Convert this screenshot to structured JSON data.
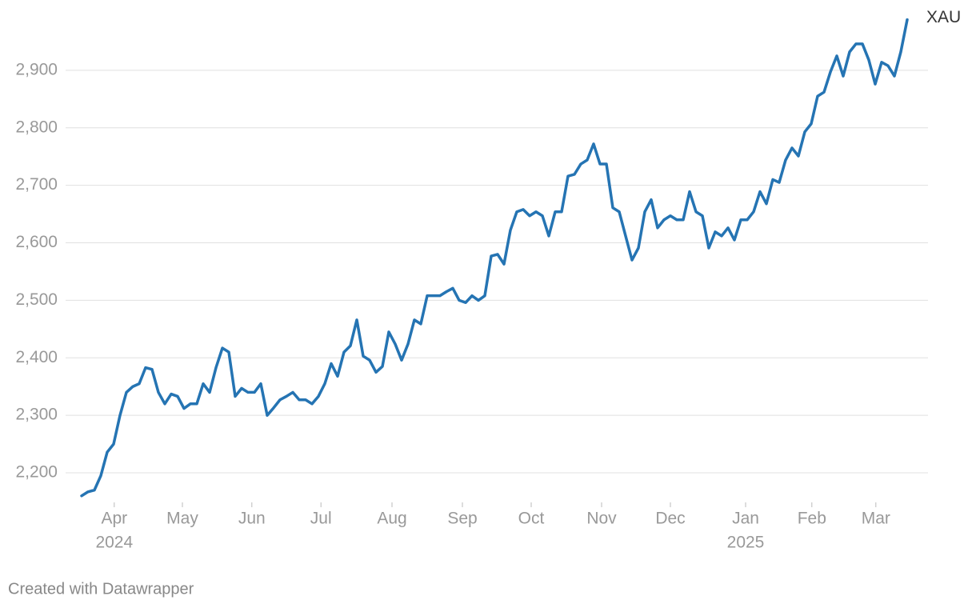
{
  "chart_data": {
    "type": "line",
    "footer": "Created with Datawrapper",
    "series": [
      {
        "name": "XAU",
        "color": "#2574b3",
        "values": [
          2160,
          2167,
          2170,
          2195,
          2236,
          2250,
          2300,
          2340,
          2350,
          2355,
          2383,
          2380,
          2340,
          2320,
          2337,
          2333,
          2312,
          2320,
          2320,
          2355,
          2340,
          2383,
          2417,
          2410,
          2333,
          2347,
          2340,
          2340,
          2355,
          2300,
          2313,
          2327,
          2333,
          2340,
          2327,
          2327,
          2320,
          2333,
          2355,
          2390,
          2368,
          2410,
          2421,
          2466,
          2403,
          2396,
          2375,
          2385,
          2445,
          2424,
          2396,
          2424,
          2466,
          2459,
          2508,
          2508,
          2508,
          2515,
          2521,
          2500,
          2496,
          2508,
          2500,
          2508,
          2577,
          2580,
          2563,
          2622,
          2654,
          2658,
          2647,
          2654,
          2647,
          2612,
          2654,
          2654,
          2716,
          2719,
          2737,
          2744,
          2772,
          2737,
          2737,
          2661,
          2654,
          2612,
          2570,
          2591,
          2654,
          2675,
          2626,
          2640,
          2647,
          2640,
          2640,
          2689,
          2654,
          2647,
          2591,
          2619,
          2612,
          2626,
          2605,
          2640,
          2640,
          2654,
          2689,
          2668,
          2710,
          2705,
          2744,
          2765,
          2751,
          2793,
          2807,
          2855,
          2862,
          2897,
          2925,
          2890,
          2932,
          2946,
          2946,
          2918,
          2876,
          2914,
          2908,
          2890,
          2932,
          2988
        ]
      }
    ],
    "xlim": [
      0,
      129
    ],
    "xticks": [
      {
        "value": 5.1,
        "label": "Apr"
      },
      {
        "value": 15.75,
        "label": "May"
      },
      {
        "value": 26.6,
        "label": "Jun"
      },
      {
        "value": 37.4,
        "label": "Jul"
      },
      {
        "value": 48.5,
        "label": "Aug"
      },
      {
        "value": 59.5,
        "label": "Sep"
      },
      {
        "value": 70.25,
        "label": "Oct"
      },
      {
        "value": 81.25,
        "label": "Nov"
      },
      {
        "value": 92,
        "label": "Dec"
      },
      {
        "value": 103.75,
        "label": "Jan"
      },
      {
        "value": 114.1,
        "label": "Feb"
      },
      {
        "value": 124.1,
        "label": "Mar"
      }
    ],
    "xyears": [
      {
        "value": 5.1,
        "label": "2024"
      },
      {
        "value": 103.75,
        "label": "2025"
      }
    ],
    "ylim": [
      2150,
      3000
    ],
    "yticks": [
      {
        "value": 2200,
        "label": "2,200"
      },
      {
        "value": 2300,
        "label": "2,300"
      },
      {
        "value": 2400,
        "label": "2,400"
      },
      {
        "value": 2500,
        "label": "2,500"
      },
      {
        "value": 2600,
        "label": "2,600"
      },
      {
        "value": 2700,
        "label": "2,700"
      },
      {
        "value": 2800,
        "label": "2,800"
      },
      {
        "value": 2900,
        "label": "2,900"
      }
    ],
    "grid": true
  }
}
